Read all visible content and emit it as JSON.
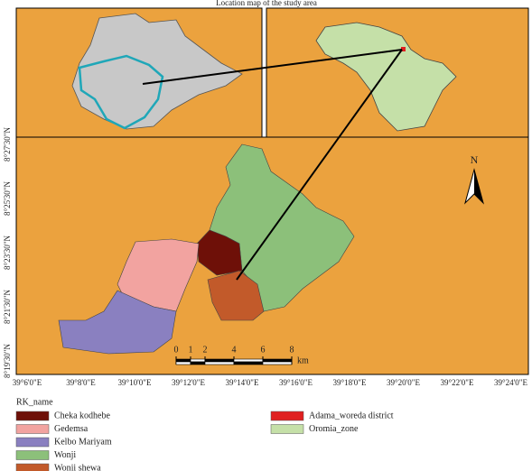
{
  "title": "Location map of the study area",
  "latitude_labels": [
    "8°27'30\"N",
    "8°25'30\"N",
    "8°23'30\"N",
    "8°21'30\"N",
    "8°19'30\"N"
  ],
  "longitude_labels": [
    "39°6'0\"E",
    "39°8'0\"E",
    "39°10'0\"E",
    "39°12'0\"E",
    "39°14'0\"E",
    "39°16'0\"E",
    "39°18'0\"E",
    "39°20'0\"E",
    "39°22'0\"E",
    "39°24'0\"E"
  ],
  "north_arrow": "N",
  "scale_bar": {
    "ticks": [
      0,
      1,
      2,
      4,
      6,
      8
    ],
    "unit": "km"
  },
  "legend": {
    "title": "RK_name",
    "items": [
      {
        "label": "Cheka kodhebe",
        "color": "#6e1008"
      },
      {
        "label": "Gedemsa",
        "color": "#f2a3a0"
      },
      {
        "label": "Kelbo Mariyam",
        "color": "#8a80c0"
      },
      {
        "label": "Wonji",
        "color": "#8cc07a"
      },
      {
        "label": "Wonji shewa",
        "color": "#c25a2a"
      },
      {
        "label": "Adama_woreda district",
        "color": "#e02020"
      },
      {
        "label": "Oromia_zone",
        "color": "#c5e0a8"
      }
    ]
  }
}
